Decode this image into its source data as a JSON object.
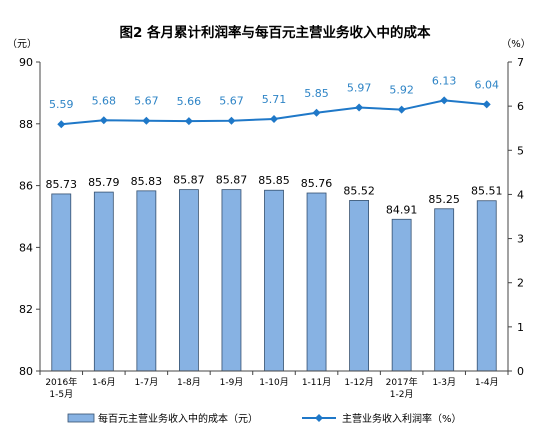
{
  "chart_data": {
    "type": "bar+line",
    "title": "图2  各月累计利润率与每百元主营业务收入中的成本",
    "left_unit": "（元）",
    "right_unit": "（%）",
    "categories": [
      [
        "2016年",
        "1-5月"
      ],
      [
        "1-6月"
      ],
      [
        "1-7月"
      ],
      [
        "1-8月"
      ],
      [
        "1-9月"
      ],
      [
        "1-10月"
      ],
      [
        "1-11月"
      ],
      [
        "1-12月"
      ],
      [
        "2017年",
        "1-2月"
      ],
      [
        "1-3月"
      ],
      [
        "1-4月"
      ]
    ],
    "left_axis": {
      "min": 80,
      "max": 90,
      "ticks": [
        "80",
        "82",
        "84",
        "86",
        "88",
        "90"
      ]
    },
    "right_axis": {
      "min": 0,
      "max": 7,
      "ticks": [
        "0",
        "1",
        "2",
        "3",
        "4",
        "5",
        "6",
        "7"
      ]
    },
    "series": [
      {
        "name": "每百元主营业务收入中的成本（元）",
        "kind": "bar",
        "axis": "left",
        "values": [
          85.73,
          85.79,
          85.83,
          85.87,
          85.87,
          85.85,
          85.76,
          85.52,
          84.91,
          85.25,
          85.51
        ],
        "labels": [
          "85.73",
          "85.79",
          "85.83",
          "85.87",
          "85.87",
          "85.85",
          "85.76",
          "85.52",
          "84.91",
          "85.25",
          "85.51"
        ]
      },
      {
        "name": "主营业务收入利润率（%）",
        "kind": "line",
        "axis": "right",
        "values": [
          5.59,
          5.68,
          5.67,
          5.66,
          5.67,
          5.71,
          5.85,
          5.97,
          5.92,
          6.13,
          6.04
        ],
        "labels": [
          "5.59",
          "5.68",
          "5.67",
          "5.66",
          "5.67",
          "5.71",
          "5.85",
          "5.97",
          "5.92",
          "6.13",
          "6.04"
        ]
      }
    ],
    "legend_position": "bottom",
    "grid": false,
    "colors": {
      "bar_fill": "#87b2e3",
      "bar_stroke": "#35506f",
      "line": "#1f78c8",
      "line_label": "#2e84c6",
      "axis": "#444444",
      "text": "#000000"
    }
  }
}
